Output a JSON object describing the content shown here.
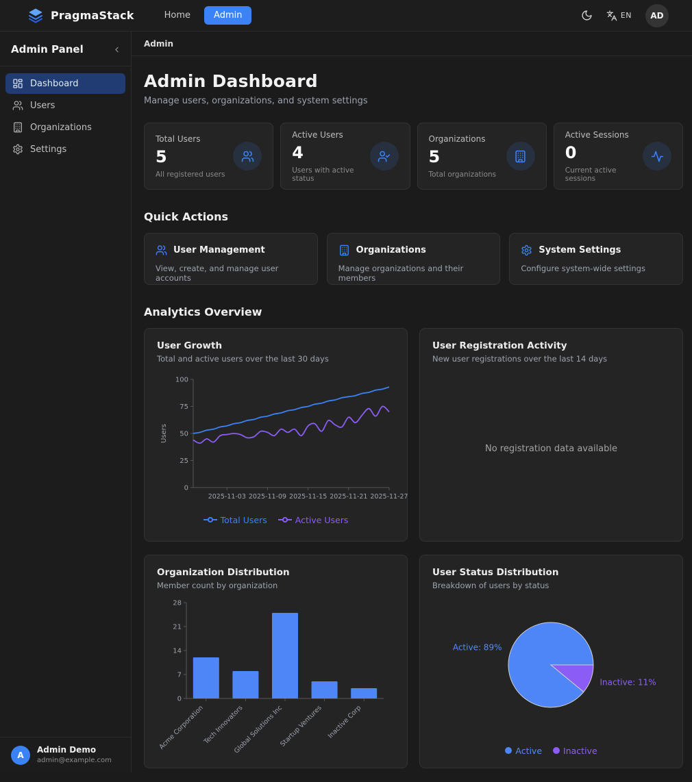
{
  "navbar": {
    "brand": "PragmaStack",
    "links": {
      "home": "Home",
      "admin": "Admin"
    },
    "language": "EN",
    "avatar_initials": "AD"
  },
  "sidebar": {
    "title": "Admin Panel",
    "items": [
      {
        "label": "Dashboard",
        "active": true
      },
      {
        "label": "Users",
        "active": false
      },
      {
        "label": "Organizations",
        "active": false
      },
      {
        "label": "Settings",
        "active": false
      }
    ],
    "user": {
      "initial": "A",
      "name": "Admin Demo",
      "email": "admin@example.com"
    }
  },
  "breadcrumb": "Admin",
  "page": {
    "title": "Admin Dashboard",
    "subtitle": "Manage users, organizations, and system settings"
  },
  "stats": [
    {
      "label": "Total Users",
      "value": "5",
      "description": "All registered users",
      "icon": "users-icon"
    },
    {
      "label": "Active Users",
      "value": "4",
      "description": "Users with active status",
      "icon": "user-check-icon"
    },
    {
      "label": "Organizations",
      "value": "5",
      "description": "Total organizations",
      "icon": "building-icon"
    },
    {
      "label": "Active Sessions",
      "value": "0",
      "description": "Current active sessions",
      "icon": "activity-icon"
    }
  ],
  "quick_actions": {
    "heading": "Quick Actions",
    "cards": [
      {
        "title": "User Management",
        "description": "View, create, and manage user accounts",
        "icon": "users-icon"
      },
      {
        "title": "Organizations",
        "description": "Manage organizations and their members",
        "icon": "building-icon"
      },
      {
        "title": "System Settings",
        "description": "Configure system-wide settings",
        "icon": "settings-icon"
      }
    ]
  },
  "analytics_heading": "Analytics Overview",
  "colors": {
    "accent_blue": "#3b82f6",
    "accent_purple": "#8b5cf6",
    "bar_blue": "#4e86f7",
    "axis": "#565656",
    "tick_text": "#9ca3af"
  },
  "chart_data": [
    {
      "type": "line",
      "title": "User Growth",
      "subtitle": "Total and active users over the last 30 days",
      "ylabel": "Users",
      "ylim": [
        0,
        100
      ],
      "yticks": [
        0,
        25,
        50,
        75,
        100
      ],
      "x": [
        "2025-10-29",
        "2025-10-30",
        "2025-10-31",
        "2025-11-01",
        "2025-11-02",
        "2025-11-03",
        "2025-11-04",
        "2025-11-05",
        "2025-11-06",
        "2025-11-07",
        "2025-11-08",
        "2025-11-09",
        "2025-11-10",
        "2025-11-11",
        "2025-11-12",
        "2025-11-13",
        "2025-11-14",
        "2025-11-15",
        "2025-11-16",
        "2025-11-17",
        "2025-11-18",
        "2025-11-19",
        "2025-11-20",
        "2025-11-21",
        "2025-11-22",
        "2025-11-23",
        "2025-11-24",
        "2025-11-25",
        "2025-11-26",
        "2025-11-27"
      ],
      "xtick_labels": [
        "2025-11-03",
        "2025-11-09",
        "2025-11-15",
        "2025-11-21",
        "2025-11-27"
      ],
      "xtick_indices": [
        5,
        11,
        17,
        23,
        29
      ],
      "grid": false,
      "legend_position": "bottom",
      "series": [
        {
          "name": "Total Users",
          "color": "#3b82f6",
          "values": [
            50,
            51,
            53,
            54,
            56,
            57,
            59,
            60,
            62,
            63,
            65,
            66,
            68,
            69,
            71,
            72,
            74,
            75,
            77,
            78,
            80,
            81,
            83,
            84,
            85,
            87,
            88,
            90,
            91,
            93
          ]
        },
        {
          "name": "Active Users",
          "color": "#8b5cf6",
          "values": [
            44,
            41,
            45,
            42,
            48,
            49,
            50,
            49,
            46,
            47,
            52,
            51,
            48,
            54,
            51,
            54,
            48,
            57,
            59,
            52,
            62,
            58,
            56,
            65,
            60,
            67,
            73,
            66,
            75,
            70
          ]
        }
      ]
    },
    {
      "type": "empty",
      "title": "User Registration Activity",
      "subtitle": "New user registrations over the last 14 days",
      "message": "No registration data available"
    },
    {
      "type": "bar",
      "title": "Organization Distribution",
      "subtitle": "Member count by organization",
      "categories": [
        "Acme Corporation",
        "Tech Innovators",
        "Global Solutions Inc",
        "Startup Ventures",
        "Inactive Corp"
      ],
      "values": [
        12,
        8,
        25,
        5,
        3
      ],
      "ylim": [
        0,
        28
      ],
      "yticks": [
        0,
        7,
        14,
        21,
        28
      ],
      "bar_color": "#4e86f7",
      "grid": false
    },
    {
      "type": "pie",
      "title": "User Status Distribution",
      "subtitle": "Breakdown of users by status",
      "slices": [
        {
          "label": "Active",
          "pct": 89,
          "color": "#4e86f7",
          "label_color": "#548af7",
          "callout": "Active: 89%"
        },
        {
          "label": "Inactive",
          "pct": 11,
          "color": "#8b5cf6",
          "label_color": "#8f62f2",
          "callout": "Inactive: 11%"
        }
      ],
      "legend_position": "bottom"
    }
  ]
}
